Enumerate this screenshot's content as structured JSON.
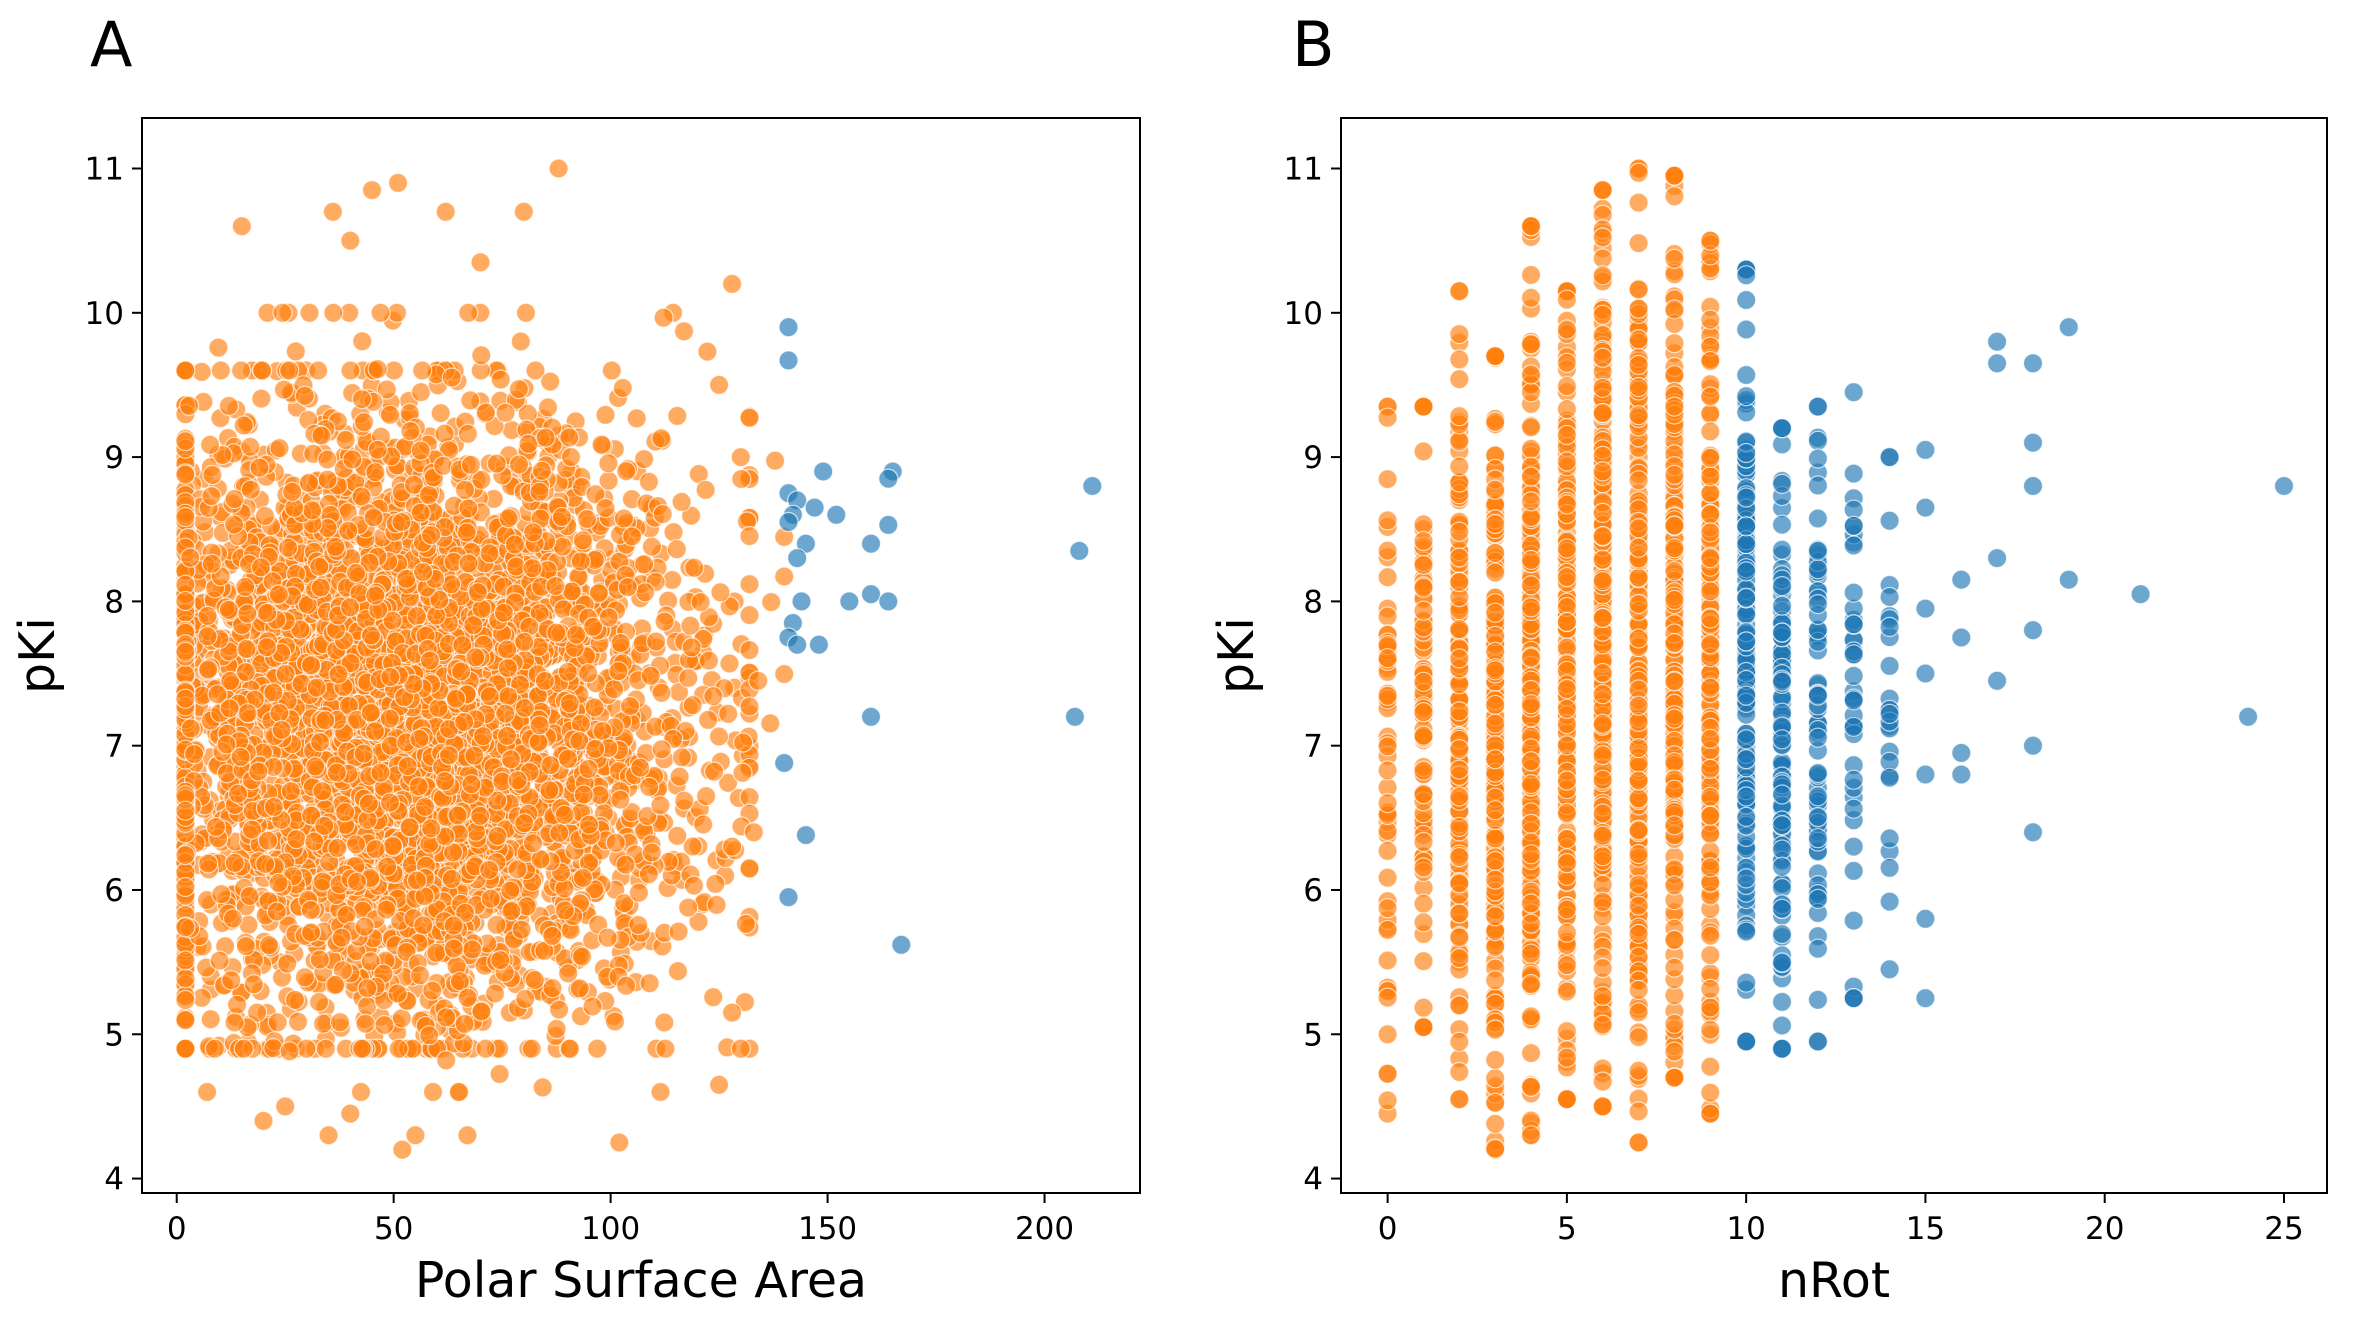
{
  "panels": [
    {
      "letter": "A"
    },
    {
      "letter": "B"
    }
  ],
  "chart_data": [
    {
      "type": "scatter",
      "title": "",
      "xlabel": "Polar Surface Area",
      "ylabel": "pKi",
      "xlim": [
        -8,
        222
      ],
      "ylim": [
        3.9,
        11.35
      ],
      "xticks": [
        0,
        50,
        100,
        150,
        200
      ],
      "yticks": [
        4,
        5,
        6,
        7,
        8,
        9,
        10,
        11
      ],
      "grid": false,
      "legend": "none",
      "series": [
        {
          "color": "#ff7f0e",
          "clouds": [
            {
              "x_range": [
                2,
                132
              ],
              "y_range": [
                4.9,
                9.6
              ],
              "x_center": 52,
              "y_center": 7.2,
              "count": 4200
            },
            {
              "x_range": [
                2,
                140
              ],
              "y_range": [
                4.6,
                10.0
              ],
              "x_center": 60,
              "y_center": 7.4,
              "count": 700
            }
          ],
          "points": [
            [
              51,
              10.9
            ],
            [
              62,
              10.7
            ],
            [
              80,
              10.7
            ],
            [
              88,
              11.0
            ],
            [
              45,
              10.85
            ],
            [
              36,
              10.7
            ],
            [
              15,
              10.6
            ],
            [
              128,
              10.2
            ],
            [
              40,
              10.5
            ],
            [
              70,
              10.35
            ],
            [
              7,
              4.6
            ],
            [
              20,
              4.4
            ],
            [
              25,
              4.5
            ],
            [
              35,
              4.3
            ],
            [
              52,
              4.2
            ],
            [
              55,
              4.3
            ],
            [
              65,
              4.6
            ],
            [
              67,
              4.3
            ],
            [
              102,
              4.25
            ],
            [
              125,
              4.65
            ],
            [
              40,
              4.45
            ],
            [
              130,
              4.9
            ],
            [
              128,
              5.15
            ],
            [
              128,
              6.3
            ],
            [
              133,
              6.4
            ],
            [
              134,
              7.45
            ],
            [
              122,
              6.65
            ],
            [
              125,
              9.5
            ],
            [
              130,
              9.0
            ]
          ]
        },
        {
          "color": "#1f77b4",
          "clouds": [],
          "points": [
            [
              141,
              9.9
            ],
            [
              141,
              9.67
            ],
            [
              141,
              8.75
            ],
            [
              143,
              8.7
            ],
            [
              142,
              8.6
            ],
            [
              141,
              8.55
            ],
            [
              145,
              8.4
            ],
            [
              143,
              8.3
            ],
            [
              147,
              8.65
            ],
            [
              149,
              8.9
            ],
            [
              152,
              8.6
            ],
            [
              160,
              8.4
            ],
            [
              165,
              8.9
            ],
            [
              164,
              8.85
            ],
            [
              164,
              8.53
            ],
            [
              144,
              8.0
            ],
            [
              142,
              7.85
            ],
            [
              141,
              7.75
            ],
            [
              143,
              7.7
            ],
            [
              148,
              7.7
            ],
            [
              155,
              8.0
            ],
            [
              160,
              8.05
            ],
            [
              164,
              8.0
            ],
            [
              160,
              7.2
            ],
            [
              140,
              6.88
            ],
            [
              145,
              6.38
            ],
            [
              141,
              5.95
            ],
            [
              167,
              5.62
            ],
            [
              211,
              8.8
            ],
            [
              208,
              8.35
            ],
            [
              207,
              7.2
            ]
          ]
        }
      ]
    },
    {
      "type": "scatter",
      "title": "",
      "xlabel": "nRot",
      "ylabel": "pKi",
      "xlim": [
        -1.3,
        26.2
      ],
      "ylim": [
        3.9,
        11.35
      ],
      "xticks": [
        0,
        5,
        10,
        15,
        20,
        25
      ],
      "yticks": [
        4,
        5,
        6,
        7,
        8,
        9,
        10,
        11
      ],
      "grid": false,
      "legend": "none",
      "series": [
        {
          "color": "#ff7f0e",
          "columns": [
            {
              "x": 0,
              "y_min": 4.45,
              "y_max": 9.35,
              "count": 60
            },
            {
              "x": 1,
              "y_min": 5.05,
              "y_max": 9.35,
              "count": 90
            },
            {
              "x": 2,
              "y_min": 4.55,
              "y_max": 10.15,
              "count": 140
            },
            {
              "x": 3,
              "y_min": 4.2,
              "y_max": 9.7,
              "count": 200
            },
            {
              "x": 4,
              "y_min": 4.3,
              "y_max": 10.6,
              "count": 230
            },
            {
              "x": 5,
              "y_min": 4.55,
              "y_max": 10.15,
              "count": 240
            },
            {
              "x": 6,
              "y_min": 4.5,
              "y_max": 10.85,
              "count": 250
            },
            {
              "x": 7,
              "y_min": 4.25,
              "y_max": 11.0,
              "count": 240
            },
            {
              "x": 8,
              "y_min": 4.7,
              "y_max": 10.95,
              "count": 220
            },
            {
              "x": 9,
              "y_min": 4.45,
              "y_max": 10.5,
              "count": 180
            }
          ],
          "points": []
        },
        {
          "color": "#1f77b4",
          "columns": [
            {
              "x": 10,
              "y_min": 4.95,
              "y_max": 10.3,
              "count": 160
            },
            {
              "x": 11,
              "y_min": 4.9,
              "y_max": 9.2,
              "count": 110
            },
            {
              "x": 12,
              "y_min": 4.95,
              "y_max": 9.35,
              "count": 70
            },
            {
              "x": 13,
              "y_min": 5.25,
              "y_max": 9.45,
              "count": 40
            },
            {
              "x": 14,
              "y_min": 5.45,
              "y_max": 9.0,
              "count": 24
            }
          ],
          "points": [
            [
              15,
              9.05
            ],
            [
              15,
              8.65
            ],
            [
              15,
              7.95
            ],
            [
              15,
              7.5
            ],
            [
              15,
              6.8
            ],
            [
              15,
              5.8
            ],
            [
              15,
              5.25
            ],
            [
              16,
              8.15
            ],
            [
              16,
              7.75
            ],
            [
              16,
              6.95
            ],
            [
              16,
              6.8
            ],
            [
              17,
              9.8
            ],
            [
              17,
              9.65
            ],
            [
              17,
              8.3
            ],
            [
              17,
              7.45
            ],
            [
              18,
              9.65
            ],
            [
              18,
              9.1
            ],
            [
              18,
              8.8
            ],
            [
              18,
              7.8
            ],
            [
              18,
              7.0
            ],
            [
              18,
              6.4
            ],
            [
              19,
              9.9
            ],
            [
              19,
              8.15
            ],
            [
              21,
              8.05
            ],
            [
              24,
              7.2
            ],
            [
              25,
              8.8
            ]
          ]
        }
      ]
    }
  ]
}
